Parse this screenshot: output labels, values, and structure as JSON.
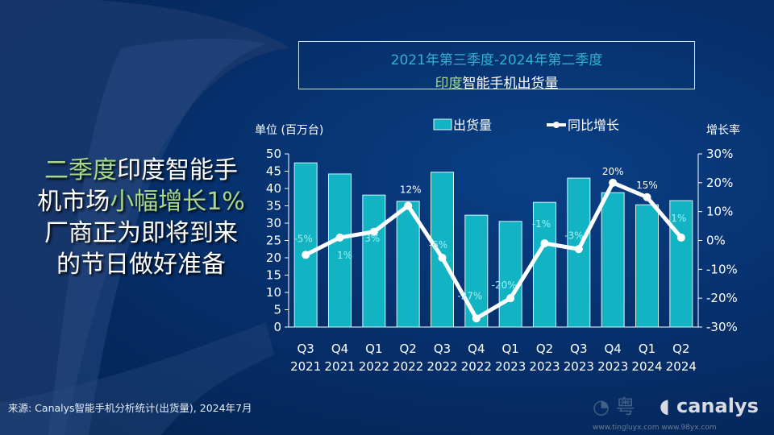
{
  "title": {
    "line1": "2021年第三季度-2024年第二季度",
    "line2_highlight": "印度",
    "line2_rest": "智能手机出货量"
  },
  "headline": {
    "l1_green": "二季度",
    "l1_white": "印度智能手",
    "l2_white": "机市场",
    "l2_green": "小幅增长1%",
    "l3": "厂商正为即将到来",
    "l4": "的节日做好准备"
  },
  "source": "来源: Canalys智能手机分析统计(出货量), 2024年7月",
  "logo": "canalys",
  "watermark": {
    "text": "粤",
    "url": "www.tingluyx.com   www.98yx.com"
  },
  "colors": {
    "bar": "#12b4c4",
    "line": "#ffffff",
    "highlight": "#a6d98a"
  },
  "chart_data": {
    "type": "bar+line",
    "y_left_label": "单位 (百万台)",
    "y_right_label": "增长率",
    "ylim_left": [
      0,
      50
    ],
    "ylim_right": [
      -30,
      30
    ],
    "left_ticks": [
      "0",
      "5",
      "10",
      "15",
      "20",
      "25",
      "30",
      "35",
      "40",
      "45",
      "50"
    ],
    "right_ticks": [
      "-30%",
      "-20%",
      "-10%",
      "0%",
      "10%",
      "20%",
      "30%"
    ],
    "categories": [
      [
        "Q3",
        "2021"
      ],
      [
        "Q4",
        "2021"
      ],
      [
        "Q1",
        "2022"
      ],
      [
        "Q2",
        "2022"
      ],
      [
        "Q3",
        "2022"
      ],
      [
        "Q4",
        "2022"
      ],
      [
        "Q1",
        "2023"
      ],
      [
        "Q2",
        "2023"
      ],
      [
        "Q3",
        "2023"
      ],
      [
        "Q4",
        "2023"
      ],
      [
        "Q1",
        "2024"
      ],
      [
        "Q2",
        "2024"
      ]
    ],
    "series": [
      {
        "name": "出货量",
        "type": "bar",
        "axis": "left",
        "values": [
          47.4,
          44.2,
          38.1,
          36.3,
          44.7,
          32.3,
          30.5,
          36.0,
          43.0,
          38.8,
          35.3,
          36.5
        ]
      },
      {
        "name": "同比增长",
        "type": "line",
        "axis": "right",
        "values": [
          -5,
          1,
          3,
          12,
          -6,
          -27,
          -20,
          -1,
          -3,
          20,
          15,
          1
        ],
        "labels": [
          "-5%",
          "1%",
          "3%",
          "12%",
          "-6%",
          "-27%",
          "-20%",
          "-1%",
          "-3%",
          "20%",
          "15%",
          "1%"
        ]
      }
    ],
    "legend": "top",
    "grid": false
  }
}
